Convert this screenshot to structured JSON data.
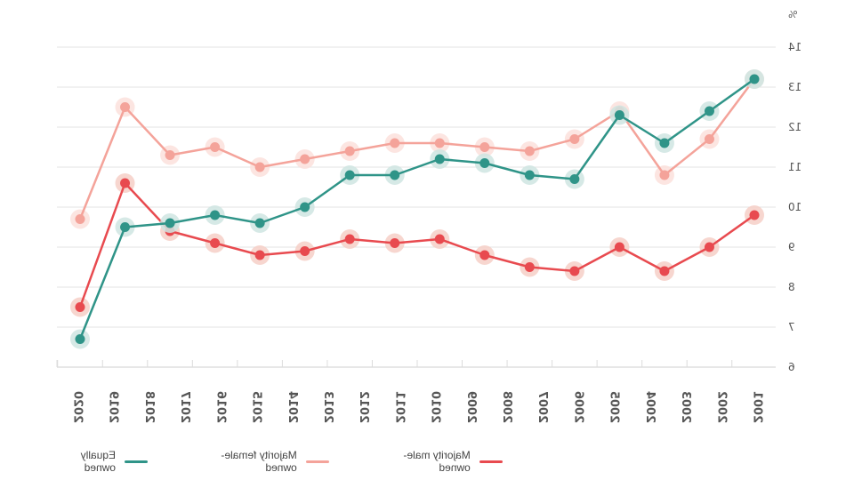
{
  "chart_data": {
    "type": "line",
    "title": "",
    "xlabel": "",
    "ylabel": "%",
    "ylim": [
      6,
      14
    ],
    "yticks": [
      6,
      7,
      8,
      9,
      10,
      11,
      12,
      13,
      14
    ],
    "grid": true,
    "legend_position": "bottom",
    "x_tick_labels": [
      "2001",
      "2002",
      "2003",
      "2004",
      "2005",
      "2006",
      "2007",
      "2008",
      "2009",
      "2010",
      "2011",
      "2012",
      "2013",
      "2014",
      "2015",
      "2016",
      "2017",
      "2018",
      "2019",
      "2020"
    ],
    "point_count": 16,
    "series": [
      {
        "name": "Majority male-owned",
        "color": "#e84a4f",
        "halo": "#f6cfc7",
        "values": [
          9.8,
          9.0,
          8.4,
          9.0,
          8.4,
          8.5,
          8.8,
          9.2,
          9.1,
          9.2,
          8.9,
          8.8,
          9.1,
          9.4,
          10.6,
          7.5
        ]
      },
      {
        "name": "Majority female-owned",
        "color": "#f4a39a",
        "halo": "#fbe1dc",
        "values": [
          13.2,
          11.7,
          10.8,
          12.4,
          11.7,
          11.4,
          11.5,
          11.6,
          11.6,
          11.4,
          11.2,
          11.0,
          11.5,
          11.3,
          12.5,
          9.7
        ]
      },
      {
        "name": "Equally owned",
        "color": "#2f9488",
        "halo": "#cfe5e2",
        "values": [
          13.2,
          12.4,
          11.6,
          12.3,
          10.7,
          10.8,
          11.1,
          11.2,
          10.8,
          10.8,
          10.0,
          9.6,
          9.8,
          9.6,
          9.5,
          6.7
        ]
      }
    ]
  },
  "legend": [
    {
      "label": "Majority male-owned",
      "color": "#e84a4f"
    },
    {
      "label": "Majority female-owned",
      "color": "#f4a39a"
    },
    {
      "label": "Equally owned",
      "color": "#2f9488"
    }
  ]
}
